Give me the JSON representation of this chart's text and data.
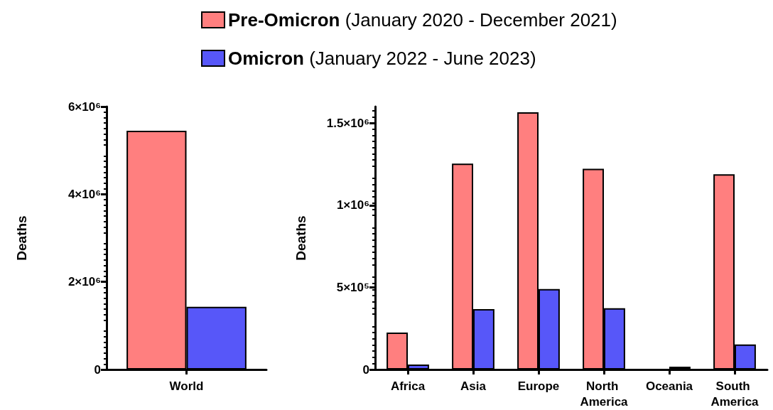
{
  "chart_data": [
    {
      "type": "bar",
      "categories": [
        "World"
      ],
      "ylabel": "Deaths",
      "ylim": [
        0,
        6000000
      ],
      "yticks": [
        {
          "value": 0,
          "label": "0"
        },
        {
          "value": 2000000,
          "label": "2×10⁶"
        },
        {
          "value": 4000000,
          "label": "4×10⁶"
        },
        {
          "value": 6000000,
          "label": "6×10⁶"
        }
      ],
      "legend": "top",
      "grid": false,
      "series": [
        {
          "name": "Pre-Omicron (January 2020 - December 2021)",
          "color": "#ff7f7f",
          "values": [
            5450000
          ]
        },
        {
          "name": "Omicron (January 2022 - June 2023)",
          "color": "#5757f9",
          "values": [
            1430000
          ]
        }
      ]
    },
    {
      "type": "bar",
      "categories": [
        "Africa",
        "Asia",
        "Europe",
        "North America",
        "Oceania",
        "South America"
      ],
      "ylabel": "Deaths",
      "ylim": [
        0,
        1600000
      ],
      "yticks": [
        {
          "value": 0,
          "label": "0"
        },
        {
          "value": 500000,
          "label": "5×10⁵"
        },
        {
          "value": 1000000,
          "label": "1×10⁶"
        },
        {
          "value": 1500000,
          "label": "1.5×10⁶"
        }
      ],
      "grid": false,
      "series": [
        {
          "color": "#ff7f7f",
          "values": [
            225000,
            1253000,
            1565000,
            1222000,
            null,
            1188000
          ]
        },
        {
          "color": "#5757f9",
          "values": [
            30000,
            368000,
            490000,
            373000,
            17000,
            152000
          ]
        }
      ]
    }
  ]
}
